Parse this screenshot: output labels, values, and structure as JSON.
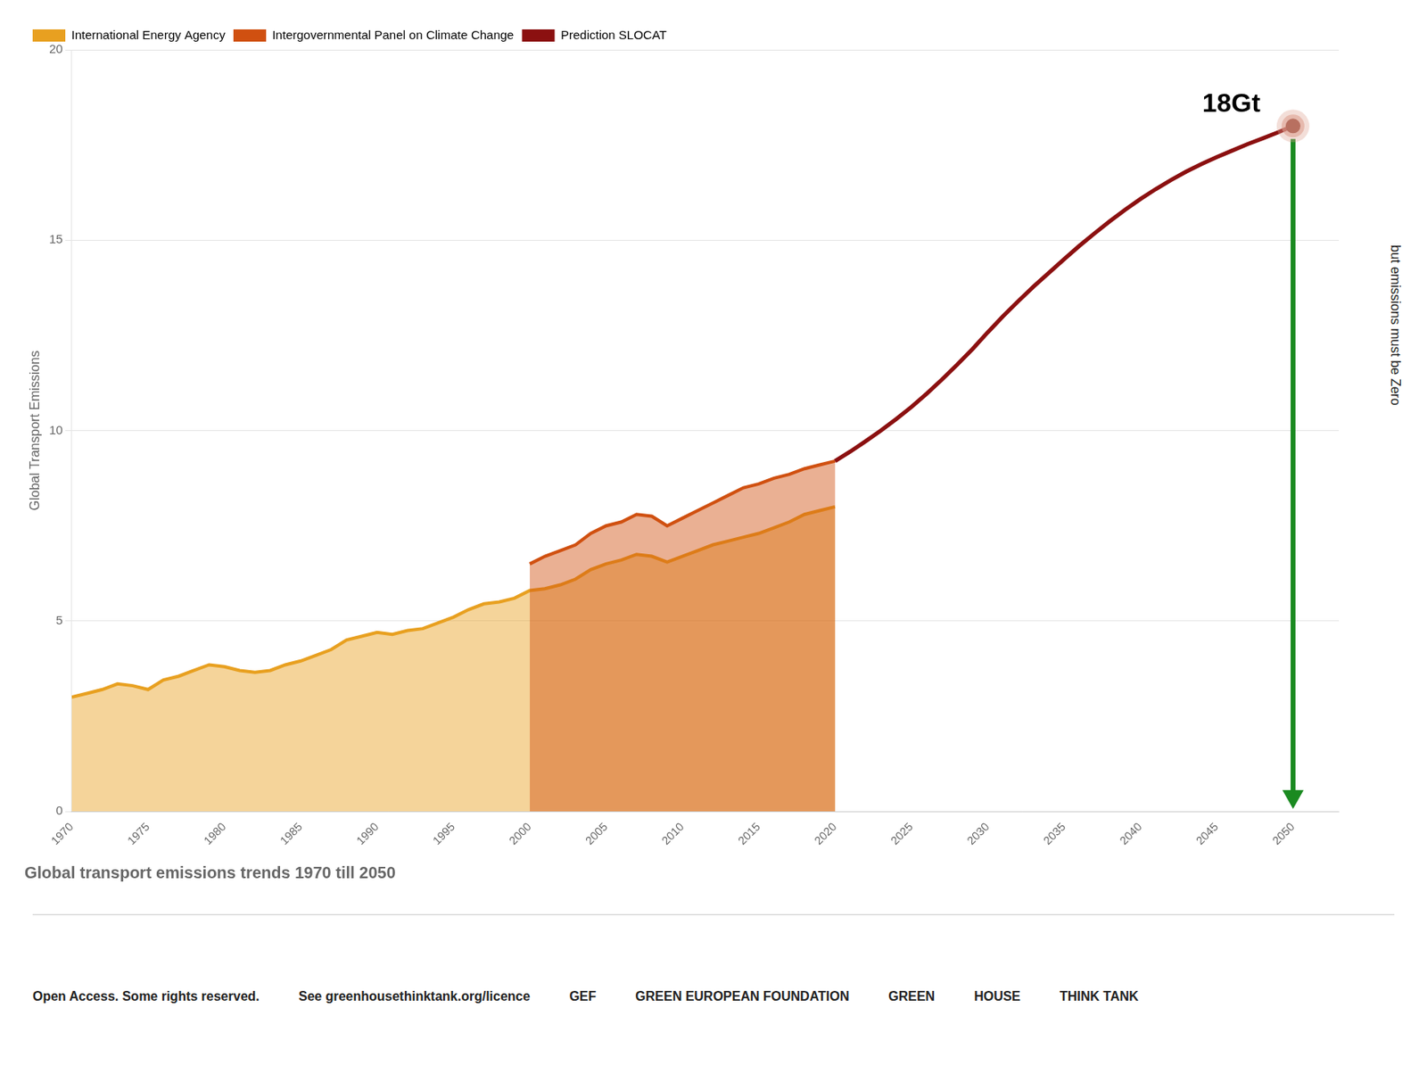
{
  "chart_data": {
    "type": "line",
    "title": "Global transport emissions trends 1970 till 2050",
    "ylabel": "Global Transport Emissions",
    "xlim": [
      1970,
      2053
    ],
    "ylim": [
      0,
      20
    ],
    "xticks": [
      1970,
      1975,
      1980,
      1985,
      1990,
      1995,
      2000,
      2005,
      2010,
      2015,
      2020,
      2025,
      2030,
      2035,
      2040,
      2045,
      2050
    ],
    "yticks": [
      0,
      5,
      10,
      15,
      20
    ],
    "grid": "y",
    "legend": "upper left",
    "series": [
      {
        "name": "International Energy Agency",
        "type": "area",
        "color": "#E8A020",
        "x": [
          1970,
          1971,
          1972,
          1973,
          1974,
          1975,
          1976,
          1977,
          1978,
          1979,
          1980,
          1981,
          1982,
          1983,
          1984,
          1985,
          1986,
          1987,
          1988,
          1989,
          1990,
          1991,
          1992,
          1993,
          1994,
          1995,
          1996,
          1997,
          1998,
          1999,
          2000,
          2001,
          2002,
          2003,
          2004,
          2005,
          2006,
          2007,
          2008,
          2009,
          2010,
          2011,
          2012,
          2013,
          2014,
          2015,
          2016,
          2017,
          2018,
          2019,
          2020
        ],
        "values": [
          3.0,
          3.1,
          3.2,
          3.35,
          3.3,
          3.2,
          3.45,
          3.55,
          3.7,
          3.85,
          3.8,
          3.7,
          3.65,
          3.7,
          3.85,
          3.95,
          4.1,
          4.25,
          4.5,
          4.6,
          4.7,
          4.65,
          4.75,
          4.8,
          4.95,
          5.1,
          5.3,
          5.45,
          5.5,
          5.6,
          5.8,
          5.85,
          5.95,
          6.1,
          6.35,
          6.5,
          6.6,
          6.75,
          6.7,
          6.55,
          6.7,
          6.85,
          7.0,
          7.1,
          7.2,
          7.3,
          7.45,
          7.6,
          7.8,
          7.9,
          8.0
        ]
      },
      {
        "name": "Intergovernmental Panel on Climate Change",
        "type": "area",
        "color": "#D05010",
        "x": [
          2000,
          2001,
          2002,
          2003,
          2004,
          2005,
          2006,
          2007,
          2008,
          2009,
          2010,
          2011,
          2012,
          2013,
          2014,
          2015,
          2016,
          2017,
          2018,
          2019,
          2020
        ],
        "values": [
          6.5,
          6.7,
          6.85,
          7.0,
          7.3,
          7.5,
          7.6,
          7.8,
          7.75,
          7.5,
          7.7,
          7.9,
          8.1,
          8.3,
          8.5,
          8.6,
          8.75,
          8.85,
          9.0,
          9.1,
          9.2
        ]
      },
      {
        "name": "Prediction SLOCAT",
        "type": "line",
        "color": "#8B1010",
        "x": [
          2020,
          2021,
          2022,
          2023,
          2024,
          2025,
          2026,
          2027,
          2028,
          2029,
          2030,
          2031,
          2032,
          2033,
          2034,
          2035,
          2036,
          2037,
          2038,
          2039,
          2040,
          2041,
          2042,
          2043,
          2044,
          2045,
          2046,
          2047,
          2048,
          2049,
          2050
        ],
        "values": [
          9.2,
          9.45,
          9.72,
          10.0,
          10.3,
          10.62,
          10.97,
          11.34,
          11.73,
          12.14,
          12.58,
          13.0,
          13.4,
          13.78,
          14.14,
          14.5,
          14.85,
          15.18,
          15.5,
          15.8,
          16.08,
          16.34,
          16.58,
          16.8,
          17.0,
          17.18,
          17.35,
          17.52,
          17.67,
          17.83,
          18.0
        ]
      }
    ],
    "annotations": [
      {
        "text": "18Gt",
        "x": 2050,
        "y": 18
      },
      {
        "text": "but emissions must be Zero"
      },
      {
        "text": "Open Access. Some rights reserved."
      },
      {
        "text": "See greenhousethinktank.org/licence"
      },
      {
        "text": "GEF"
      },
      {
        "text": "GREEN EUROPEAN FOUNDATION"
      },
      {
        "text": "GREEN"
      },
      {
        "text": "HOUSE"
      },
      {
        "text": "THINK TANK"
      }
    ]
  }
}
